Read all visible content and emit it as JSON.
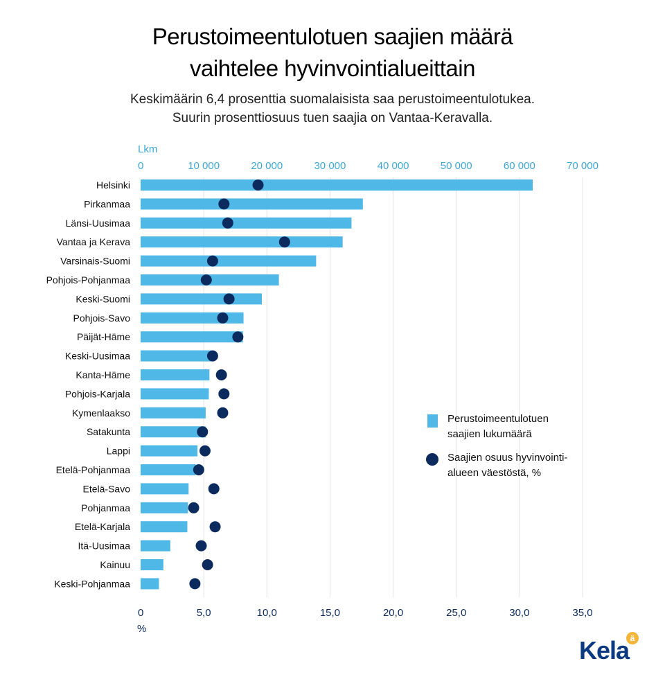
{
  "title_lines": [
    "Perustoimeentulotuen saajien määrä",
    "vaihtelee hyvinvointialueittain"
  ],
  "subtitle_lines": [
    "Keskimäärin 6,4 prosenttia suomalaisista saa perustoimeentulotukea.",
    "Suurin prosenttiosuus tuen saajia on Vantaa-Keravalla."
  ],
  "logo": {
    "text": "Kela",
    "badge": "ä"
  },
  "colors": {
    "bar": "#4fb8e6",
    "dot": "#0b2b5e",
    "top_axis": "#3fa7d6",
    "bottom_axis": "#0b2b5e",
    "grid": "#e3e3e3"
  },
  "chart_data": {
    "type": "bar",
    "orientation": "horizontal",
    "title": "Perustoimeentulotuen saajien määrä vaihtelee hyvinvointialueittain",
    "categories": [
      "Helsinki",
      "Pirkanmaa",
      "Länsi-Uusimaa",
      "Vantaa ja Kerava",
      "Varsinais-Suomi",
      "Pohjois-Pohjanmaa",
      "Keski-Suomi",
      "Pohjois-Savo",
      "Päijät-Häme",
      "Keski-Uusimaa",
      "Kanta-Häme",
      "Pohjois-Karjala",
      "Kymenlaakso",
      "Satakunta",
      "Lappi",
      "Etelä-Pohjanmaa",
      "Etelä-Savo",
      "Pohjanmaa",
      "Etelä-Karjala",
      "Itä-Uusimaa",
      "Kainuu",
      "Keski-Pohjanmaa"
    ],
    "series": [
      {
        "name": "Perustoimeentulotuen saajien lukumäärä",
        "type": "bar",
        "axis": "top",
        "values": [
          62100,
          35200,
          33400,
          32000,
          27800,
          21900,
          19200,
          16300,
          16200,
          11200,
          10900,
          10800,
          10300,
          10300,
          9000,
          8700,
          7600,
          7500,
          7400,
          4700,
          3600,
          2900
        ]
      },
      {
        "name": "Saajien osuus hyvinvointialueen väestöstä, %",
        "type": "scatter",
        "axis": "bottom",
        "values": [
          9.3,
          6.6,
          6.9,
          11.4,
          5.7,
          5.2,
          7.0,
          6.5,
          7.7,
          5.7,
          6.4,
          6.6,
          6.5,
          4.9,
          5.1,
          4.6,
          5.8,
          4.2,
          5.9,
          4.8,
          5.3,
          4.3
        ]
      }
    ],
    "top_axis": {
      "label": "Lkm",
      "range": [
        0,
        70000
      ],
      "ticks": [
        0,
        10000,
        20000,
        30000,
        40000,
        50000,
        60000,
        70000
      ],
      "tick_labels": [
        "0",
        "10 000",
        "20 000",
        "30 000",
        "40 000",
        "50 000",
        "60 000",
        "70 000"
      ]
    },
    "bottom_axis": {
      "label": "%",
      "range": [
        0,
        35
      ],
      "ticks": [
        0,
        5,
        10,
        15,
        20,
        25,
        30,
        35
      ],
      "tick_labels": [
        "0",
        "5,0",
        "10,0",
        "15,0",
        "20,0",
        "25,0",
        "30,0",
        "35,0"
      ]
    },
    "grid": true,
    "legend": {
      "position": "right",
      "entries": [
        {
          "lines": [
            "Perustoimeentulotuen",
            "saajien lukumäärä"
          ],
          "marker": "square"
        },
        {
          "lines": [
            "Saajien osuus hyvinvointi-",
            "alueen väestöstä, %"
          ],
          "marker": "circle"
        }
      ]
    }
  }
}
